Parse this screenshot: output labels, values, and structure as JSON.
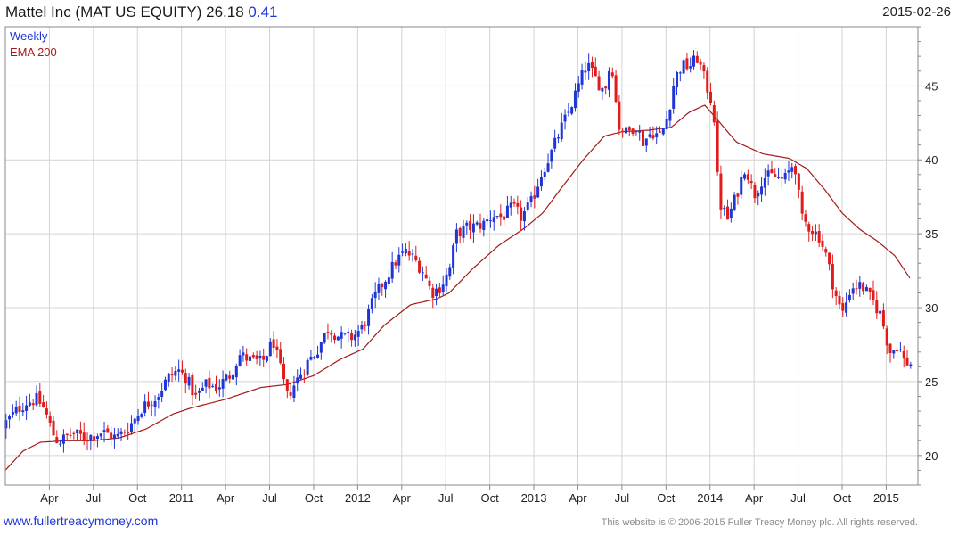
{
  "header": {
    "title": "Mattel Inc (MAT US EQUITY) 26.18",
    "change": "0.41",
    "date": "2015-02-26"
  },
  "legend": {
    "weekly": "Weekly",
    "ema": "EMA 200"
  },
  "footer": {
    "link": "www.fullertreacymoney.com",
    "copyright": "This website is © 2006-2015 Fuller Treacy Money plc. All rights reserved."
  },
  "colors": {
    "up": "#1f35d6",
    "down": "#e01b1b",
    "ema": "#a31a1a",
    "grid": "#d4d4d4",
    "frame": "#888888"
  },
  "chart_data": {
    "type": "candlestick",
    "title": "Mattel Inc (MAT US EQUITY) 26.18 0.41",
    "interval": "weekly",
    "x_range": [
      2010.0,
      2015.18
    ],
    "ylim": [
      18,
      49
    ],
    "yticks": [
      20,
      25,
      30,
      35,
      40,
      45
    ],
    "xticks": [
      {
        "label": "Apr",
        "t": 2010.25
      },
      {
        "label": "Jul",
        "t": 2010.5
      },
      {
        "label": "Oct",
        "t": 2010.75
      },
      {
        "label": "2011",
        "t": 2011.0
      },
      {
        "label": "Apr",
        "t": 2011.25
      },
      {
        "label": "Jul",
        "t": 2011.5
      },
      {
        "label": "Oct",
        "t": 2011.75
      },
      {
        "label": "2012",
        "t": 2012.0
      },
      {
        "label": "Apr",
        "t": 2012.25
      },
      {
        "label": "Jul",
        "t": 2012.5
      },
      {
        "label": "Oct",
        "t": 2012.75
      },
      {
        "label": "2013",
        "t": 2013.0
      },
      {
        "label": "Apr",
        "t": 2013.25
      },
      {
        "label": "Jul",
        "t": 2013.5
      },
      {
        "label": "Oct",
        "t": 2013.75
      },
      {
        "label": "2014",
        "t": 2014.0
      },
      {
        "label": "Apr",
        "t": 2014.25
      },
      {
        "label": "Jul",
        "t": 2014.5
      },
      {
        "label": "Oct",
        "t": 2014.75
      },
      {
        "label": "2015",
        "t": 2015.0
      }
    ],
    "close_anchors": [
      [
        2010.0,
        22.2
      ],
      [
        2010.06,
        23.0
      ],
      [
        2010.12,
        23.6
      ],
      [
        2010.18,
        23.8
      ],
      [
        2010.22,
        23.2
      ],
      [
        2010.27,
        21.5
      ],
      [
        2010.3,
        20.9
      ],
      [
        2010.38,
        21.5
      ],
      [
        2010.46,
        21.2
      ],
      [
        2010.55,
        21.6
      ],
      [
        2010.63,
        21.2
      ],
      [
        2010.7,
        21.9
      ],
      [
        2010.78,
        23.3
      ],
      [
        2010.86,
        24.0
      ],
      [
        2010.92,
        25.2
      ],
      [
        2010.98,
        25.8
      ],
      [
        2011.03,
        25.2
      ],
      [
        2011.08,
        23.9
      ],
      [
        2011.14,
        24.8
      ],
      [
        2011.2,
        24.6
      ],
      [
        2011.28,
        25.5
      ],
      [
        2011.33,
        26.8
      ],
      [
        2011.4,
        26.4
      ],
      [
        2011.46,
        26.3
      ],
      [
        2011.52,
        27.8
      ],
      [
        2011.6,
        24.0
      ],
      [
        2011.66,
        25.2
      ],
      [
        2011.72,
        26.4
      ],
      [
        2011.77,
        27.1
      ],
      [
        2011.83,
        28.6
      ],
      [
        2011.9,
        28.0
      ],
      [
        2011.97,
        28.0
      ],
      [
        2012.03,
        28.7
      ],
      [
        2012.1,
        30.8
      ],
      [
        2012.16,
        32.0
      ],
      [
        2012.22,
        33.2
      ],
      [
        2012.27,
        33.8
      ],
      [
        2012.32,
        33.3
      ],
      [
        2012.37,
        32.5
      ],
      [
        2012.42,
        31.0
      ],
      [
        2012.47,
        31.4
      ],
      [
        2012.52,
        32.5
      ],
      [
        2012.56,
        35.0
      ],
      [
        2012.62,
        35.4
      ],
      [
        2012.67,
        35.5
      ],
      [
        2012.72,
        35.7
      ],
      [
        2012.77,
        36.3
      ],
      [
        2012.82,
        36.1
      ],
      [
        2012.88,
        36.8
      ],
      [
        2012.93,
        36.1
      ],
      [
        2012.99,
        37.2
      ],
      [
        2013.04,
        39.0
      ],
      [
        2013.1,
        40.5
      ],
      [
        2013.15,
        42.0
      ],
      [
        2013.2,
        43.3
      ],
      [
        2013.25,
        44.9
      ],
      [
        2013.3,
        46.5
      ],
      [
        2013.35,
        45.5
      ],
      [
        2013.4,
        44.6
      ],
      [
        2013.44,
        46.8
      ],
      [
        2013.48,
        42.3
      ],
      [
        2013.53,
        41.8
      ],
      [
        2013.58,
        42.4
      ],
      [
        2013.62,
        41.2
      ],
      [
        2013.67,
        41.9
      ],
      [
        2013.72,
        41.6
      ],
      [
        2013.76,
        43.0
      ],
      [
        2013.8,
        45.5
      ],
      [
        2013.84,
        46.4
      ],
      [
        2013.88,
        46.3
      ],
      [
        2013.93,
        46.9
      ],
      [
        2013.98,
        45.0
      ],
      [
        2014.02,
        43.5
      ],
      [
        2014.05,
        37.2
      ],
      [
        2014.1,
        36.0
      ],
      [
        2014.15,
        37.6
      ],
      [
        2014.2,
        39.6
      ],
      [
        2014.25,
        37.6
      ],
      [
        2014.3,
        38.8
      ],
      [
        2014.36,
        38.9
      ],
      [
        2014.42,
        38.6
      ],
      [
        2014.48,
        39.9
      ],
      [
        2014.52,
        36.0
      ],
      [
        2014.57,
        35.4
      ],
      [
        2014.62,
        34.8
      ],
      [
        2014.66,
        33.5
      ],
      [
        2014.71,
        31.0
      ],
      [
        2014.75,
        29.5
      ],
      [
        2014.8,
        31.4
      ],
      [
        2014.86,
        31.5
      ],
      [
        2014.92,
        30.5
      ],
      [
        2014.97,
        29.5
      ],
      [
        2015.02,
        27.0
      ],
      [
        2015.07,
        27.5
      ],
      [
        2015.1,
        26.4
      ],
      [
        2015.14,
        26.18
      ]
    ],
    "ema_anchors": [
      [
        2010.0,
        19.0
      ],
      [
        2010.1,
        20.3
      ],
      [
        2010.2,
        20.9
      ],
      [
        2010.35,
        21.0
      ],
      [
        2010.5,
        21.0
      ],
      [
        2010.65,
        21.2
      ],
      [
        2010.8,
        21.8
      ],
      [
        2010.95,
        22.8
      ],
      [
        2011.05,
        23.2
      ],
      [
        2011.25,
        23.8
      ],
      [
        2011.45,
        24.6
      ],
      [
        2011.6,
        24.8
      ],
      [
        2011.75,
        25.4
      ],
      [
        2011.9,
        26.5
      ],
      [
        2012.03,
        27.2
      ],
      [
        2012.15,
        28.8
      ],
      [
        2012.3,
        30.2
      ],
      [
        2012.45,
        30.6
      ],
      [
        2012.52,
        31.0
      ],
      [
        2012.65,
        32.6
      ],
      [
        2012.8,
        34.2
      ],
      [
        2012.95,
        35.4
      ],
      [
        2013.05,
        36.4
      ],
      [
        2013.15,
        38.0
      ],
      [
        2013.28,
        40.0
      ],
      [
        2013.4,
        41.6
      ],
      [
        2013.5,
        41.9
      ],
      [
        2013.65,
        42.0
      ],
      [
        2013.78,
        42.2
      ],
      [
        2013.88,
        43.2
      ],
      [
        2013.97,
        43.7
      ],
      [
        2014.05,
        42.6
      ],
      [
        2014.15,
        41.2
      ],
      [
        2014.3,
        40.4
      ],
      [
        2014.45,
        40.1
      ],
      [
        2014.55,
        39.4
      ],
      [
        2014.65,
        38.0
      ],
      [
        2014.75,
        36.4
      ],
      [
        2014.85,
        35.3
      ],
      [
        2014.95,
        34.5
      ],
      [
        2015.05,
        33.5
      ],
      [
        2015.14,
        31.9
      ]
    ]
  }
}
